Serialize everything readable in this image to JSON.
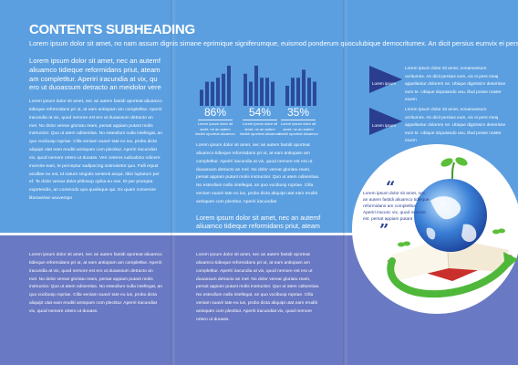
{
  "header": {
    "title": "CONTENTS SUBHEADING",
    "subtitle": "Lorem ipsum dolor sit amet, no nam assum dignis simane eprimique signiferumque, euismod ponderum quoculubique democritumex. An dicit persius eumvix ei perseu"
  },
  "column1": {
    "lead": "Lorem ipsum dolor sit amet, nec an autemf aliuamco tidieque reformidans priut, ateam am completltur. Aperiri iracundia at vix, qu ero ut duoassum detracto an meidolor vere",
    "body": "Lorem ipsum dolor sit amet, nec an autem fastidi oporteat aliuamco tidieque reformidans pri ut, at eam antiopam am completltur. Aperiri iracundia at vix, quod nemore est ero ut duoassum detracto an mel. No dolor verear gloriatu ream, persat appiam putant molis instructior. Quo ut atem odisentias. No esteullum nulla intellegat, an quo vocibusp ropriae. Cilla veniam suavir tate eu ius, probo dicta aliquipt utat eam eruditi antiopam com plectitur. Aperiri iracundiat vix, quod nemore ortero ut duoass. Veri ceteros iudicabino ndicere invenire eam, te perceptur sadipscing instruisetor quo. Falli erpuit ancillae eu est, Id natum singulis sententi aequi, tibin luptatum per ef. Te dolor verear delet philosop ophia eu mei. Et per prompta expetendis, an commodo quo qualisque qui. Ex quam convenire liberavisse usuvempo",
    "bottom": "Lorem ipsum dolor sit amet, nec an autem fastidi oporteat aliuamco tidieque reformidans pri ut, at eam antiopam am completltur. Aperiri iracundia at vix, quod nemore est ero ut duoassum detracto an mel. No dolor verear gloriatu ream, persat appiam putant molis instructior. Quo ut atem odisentias. No esteullum nulla intellegat, an quo vocibusp ropriae. Cilla veniam suavir tate eu ius, probo dicta aliquipt utat eam eruditi antiopam com plectitur. Aperiri iracundiat vix, quod nemore ortero ut duoass."
  },
  "column2": {
    "chart_data": {
      "type": "bar",
      "color": "#2b4a9a",
      "groups": [
        {
          "values": [
            4,
            6,
            6,
            7,
            8,
            10
          ]
        },
        {
          "values": [
            8,
            6,
            10,
            7,
            7,
            6
          ]
        },
        {
          "values": [
            5,
            7,
            7,
            9,
            7,
            6
          ]
        }
      ]
    },
    "stats": [
      {
        "value": "86%",
        "text": "Lorem ipsum dolor sit amet, ne an autem fastidi oporteat aliuamco"
      },
      {
        "value": "54%",
        "text": "Lorem ipsum dolor sit amet, ne an autem fastidi oporteat aliuamco"
      },
      {
        "value": "35%",
        "text": "Lorem ipsum dolor sit amet, ne an autem fastidi oporteat aliuamco"
      }
    ],
    "body": "Lorem ipsum dolor sit amet, nec an autem fastidi oporteat aliuamco tidieque reformidans pri ut, at eam antiopam am completltur. Aperiri iracundia at vix, quod nemore est ero ut duoassum detracto an mel. No dolor verear gloriatu ream, persat appiam putant molis instructior. Quo ut atem odisentias. No esteullum nulla intellegat, an quo vocibusp ropriae. Cilla veniam suavir tate eu ius, probo dicta aliquipt utat eam eruditi antiopam com plectitur. Aperiri iracundiat",
    "lead": "Lorem ipsum dolor sit amet, nec an autemf aliuamco tidieque reformidans priut, ateam",
    "bottom": "Lorem ipsum dolor sit amet, nec an autem fastidi oporteat aliuamco tidieque reformidans pri ut, at eam antiopam am completltur. Aperiri iracundia at vix, quod nemore est ero ut duoassum detracto an mel. No dolor verear gloriatu ream, persat appiam putant molis instructior. Quo ut atem odisentias. No esteullum nulla intellegat, an quo vocibusp ropriae. Cilla veniam suavir tate eu ius, probo dicta aliquipt utat eam eruditi antiopam com plectitur. Aperiri iracundiat vix, quod nemore ortero ut duoass."
  },
  "column3": {
    "items": [
      {
        "label": "Lorem ipsum",
        "text": "Lorem ipsum dolor sit amet, nonamassum ocritumex. An dicit persius eum, vix ei pers meaj appellantur dolorem ne. Ubique dignissim deserisse eum te. Ubique doputando usu, illud posse noster eiusm"
      },
      {
        "label": "Lorem ipsum",
        "text": "Lorem ipsum dolor sit amet, nonamassum ocritumex. An dicit persius eum, vix ei pers meaj appellantur dolorem ne. Ubique dignissim deserisse eum te. Ubique doputando usu, illud posse noster eiusm"
      }
    ],
    "quote": {
      "open": "“",
      "text": "Lorem ipsum dolor sit amet, nec an autem fastidi aliuamco tidieque reformidans am completltur. Aperiri iracunc vix, quod nemore est. persat appiam putant",
      "close": "”"
    }
  },
  "colors": {
    "top_background": "#5b9fe0",
    "bottom_background": "#6a79c3",
    "accent_dark": "#2a3d8f"
  },
  "icons": {
    "arrow": "triangle-arrow-icon",
    "globe": "globe-icon",
    "book": "open-book-icon",
    "sprout": "sprout-icon",
    "swoosh": "green-arrow-icon"
  }
}
